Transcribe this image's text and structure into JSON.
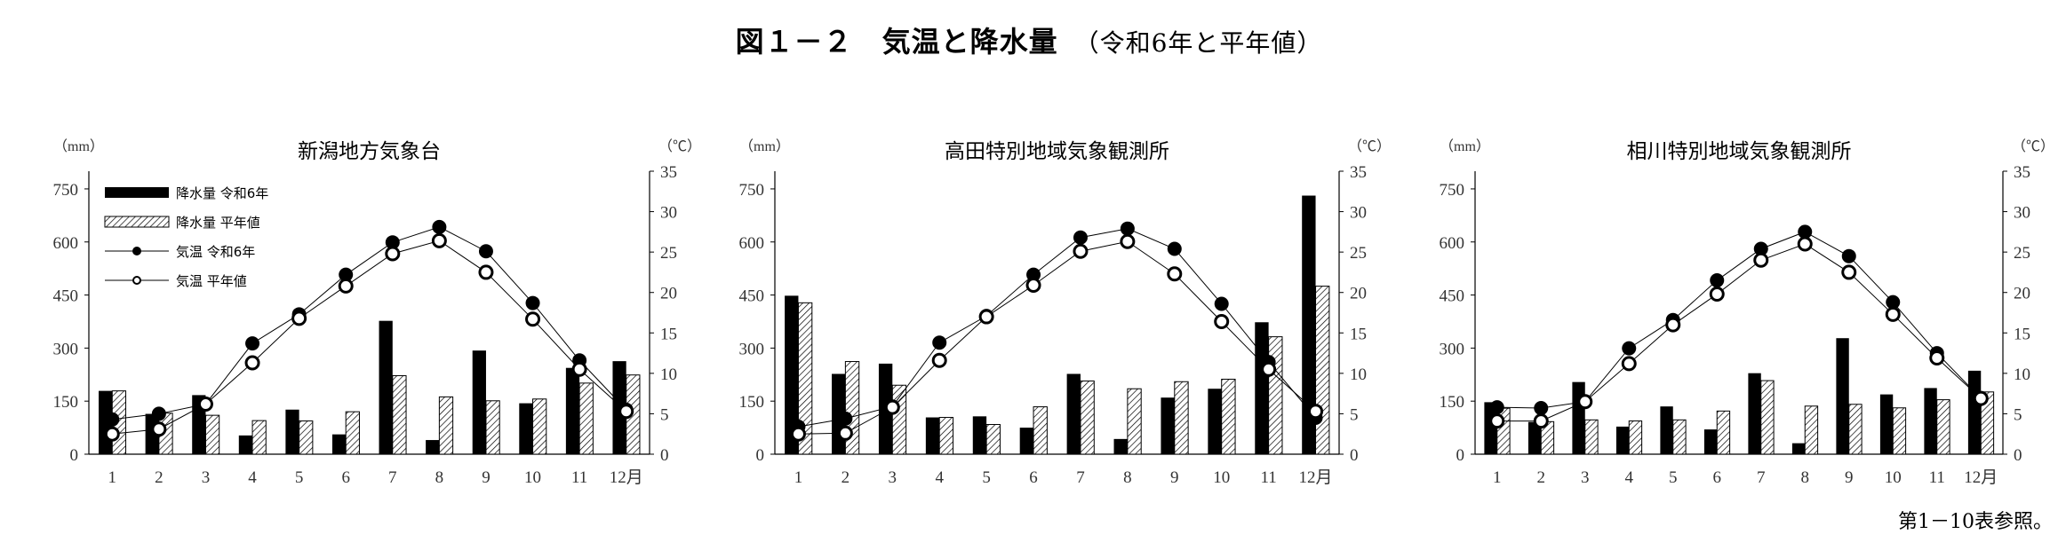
{
  "figure": {
    "title": "図１－２　気温と降水量",
    "subtitle": "（令和6年と平年値）",
    "footer": "第1－10表参照。"
  },
  "legend": {
    "precip_2024": "降水量 令和6年",
    "precip_normal": "降水量 平年値",
    "temp_2024": "気温 令和6年",
    "temp_normal": "気温 平年値"
  },
  "colors": {
    "precip_2024": "#000000",
    "precip_normal_hatch": "#000000",
    "temp_2024_marker": "#000000",
    "temp_normal_marker": "#ffffff"
  },
  "chart_data": [
    {
      "type": "bar+line",
      "title": "新潟地方気象台",
      "ylabel_left": "（mm）",
      "ylabel_right": "（℃）",
      "categories": [
        "1",
        "2",
        "3",
        "4",
        "5",
        "6",
        "7",
        "8",
        "9",
        "10",
        "11",
        "12月"
      ],
      "ylim_left": [
        0,
        800
      ],
      "yticks_left": [
        0,
        150,
        300,
        450,
        600,
        750
      ],
      "ylim_right": [
        0,
        35
      ],
      "yticks_right": [
        0,
        5,
        10,
        15,
        20,
        25,
        30,
        35
      ],
      "legend_position": "top-left",
      "series": [
        {
          "name": "降水量 令和6年",
          "kind": "bar",
          "axis": "left",
          "values": [
            179,
            114,
            167,
            53,
            126,
            56,
            377,
            40,
            293,
            144,
            244,
            263
          ]
        },
        {
          "name": "降水量 平年値",
          "kind": "bar-hatched",
          "axis": "left",
          "values": [
            179,
            116,
            110,
            95,
            94,
            120,
            222,
            162,
            151,
            156,
            201,
            224
          ]
        },
        {
          "name": "気温 令和6年",
          "kind": "line-filled",
          "axis": "right",
          "values": [
            4.3,
            5.0,
            6.2,
            13.7,
            17.3,
            22.2,
            26.2,
            28.1,
            25.1,
            18.7,
            11.6,
            5.5
          ]
        },
        {
          "name": "気温 平年値",
          "kind": "line-open",
          "axis": "right",
          "values": [
            2.5,
            3.1,
            6.2,
            11.3,
            16.8,
            20.8,
            24.8,
            26.4,
            22.5,
            16.7,
            10.5,
            5.3
          ]
        }
      ]
    },
    {
      "type": "bar+line",
      "title": "高田特別地域気象観測所",
      "ylabel_left": "（mm）",
      "ylabel_right": "（℃）",
      "categories": [
        "1",
        "2",
        "3",
        "4",
        "5",
        "6",
        "7",
        "8",
        "9",
        "10",
        "11",
        "12月"
      ],
      "ylim_left": [
        0,
        800
      ],
      "yticks_left": [
        0,
        150,
        300,
        450,
        600,
        750
      ],
      "ylim_right": [
        0,
        35
      ],
      "yticks_right": [
        0,
        5,
        10,
        15,
        20,
        25,
        30,
        35
      ],
      "series": [
        {
          "name": "降水量 令和6年",
          "kind": "bar",
          "axis": "left",
          "values": [
            448,
            227,
            256,
            104,
            107,
            75,
            227,
            43,
            160,
            185,
            373,
            731
          ]
        },
        {
          "name": "降水量 平年値",
          "kind": "bar-hatched",
          "axis": "left",
          "values": [
            428,
            262,
            195,
            104,
            84,
            134,
            207,
            185,
            205,
            212,
            332,
            475
          ]
        },
        {
          "name": "気温 令和6年",
          "kind": "line-filled",
          "axis": "right",
          "values": [
            3.4,
            4.4,
            5.9,
            13.8,
            17.1,
            22.2,
            26.8,
            27.9,
            25.4,
            18.6,
            11.4,
            4.5
          ]
        },
        {
          "name": "気温 平年値",
          "kind": "line-open",
          "axis": "right",
          "values": [
            2.5,
            2.6,
            5.8,
            11.6,
            17.0,
            20.9,
            25.1,
            26.3,
            22.3,
            16.4,
            10.5,
            5.3
          ]
        }
      ]
    },
    {
      "type": "bar+line",
      "title": "相川特別地域気象観測所",
      "ylabel_left": "（mm）",
      "ylabel_right": "（℃）",
      "categories": [
        "1",
        "2",
        "3",
        "4",
        "5",
        "6",
        "7",
        "8",
        "9",
        "10",
        "11",
        "12月"
      ],
      "ylim_left": [
        0,
        800
      ],
      "yticks_left": [
        0,
        150,
        300,
        450,
        600,
        750
      ],
      "ylim_right": [
        0,
        35
      ],
      "yticks_right": [
        0,
        5,
        10,
        15,
        20,
        25,
        30,
        35
      ],
      "series": [
        {
          "name": "降水量 令和6年",
          "kind": "bar",
          "axis": "left",
          "values": [
            147,
            91,
            204,
            78,
            135,
            70,
            229,
            31,
            328,
            169,
            187,
            236
          ]
        },
        {
          "name": "降水量 平年値",
          "kind": "bar-hatched",
          "axis": "left",
          "values": [
            130,
            92,
            97,
            94,
            97,
            122,
            208,
            136,
            141,
            131,
            154,
            176
          ]
        },
        {
          "name": "気温 令和6年",
          "kind": "line-filled",
          "axis": "right",
          "values": [
            5.8,
            5.7,
            6.5,
            13.1,
            16.6,
            21.5,
            25.4,
            27.5,
            24.5,
            18.8,
            12.5,
            6.9
          ]
        },
        {
          "name": "気温 平年値",
          "kind": "line-open",
          "axis": "right",
          "values": [
            4.1,
            4.1,
            6.5,
            11.2,
            16.0,
            19.8,
            24.0,
            26.0,
            22.5,
            17.3,
            11.9,
            6.9
          ]
        }
      ]
    }
  ]
}
